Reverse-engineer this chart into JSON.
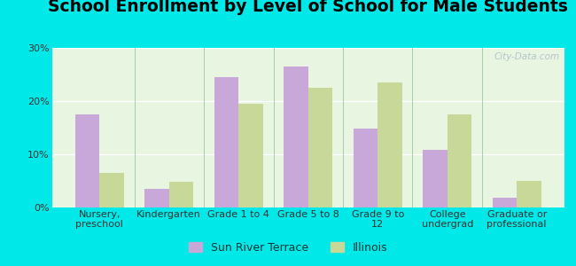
{
  "title": "School Enrollment by Level of School for Male Students",
  "categories": [
    "Nursery,\npreschool",
    "Kindergarten",
    "Grade 1 to 4",
    "Grade 5 to 8",
    "Grade 9 to\n12",
    "College\nundergrad",
    "Graduate or\nprofessional"
  ],
  "sun_river_terrace": [
    17.5,
    3.5,
    24.5,
    26.5,
    14.8,
    10.8,
    1.8
  ],
  "illinois": [
    6.5,
    4.8,
    19.5,
    22.5,
    23.5,
    17.5,
    5.0
  ],
  "color_srt": "#c8a8d8",
  "color_il": "#c8d898",
  "background_outer": "#00e8e8",
  "background_plot_top": "#e8f5e0",
  "background_plot_bottom": "#d8f0c8",
  "ylim": [
    0,
    30
  ],
  "yticks": [
    0,
    10,
    20,
    30
  ],
  "yticklabels": [
    "0%",
    "10%",
    "20%",
    "30%"
  ],
  "legend_srt": "Sun River Terrace",
  "legend_il": "Illinois",
  "bar_width": 0.35,
  "title_fontsize": 13.5,
  "tick_fontsize": 8,
  "legend_fontsize": 9
}
